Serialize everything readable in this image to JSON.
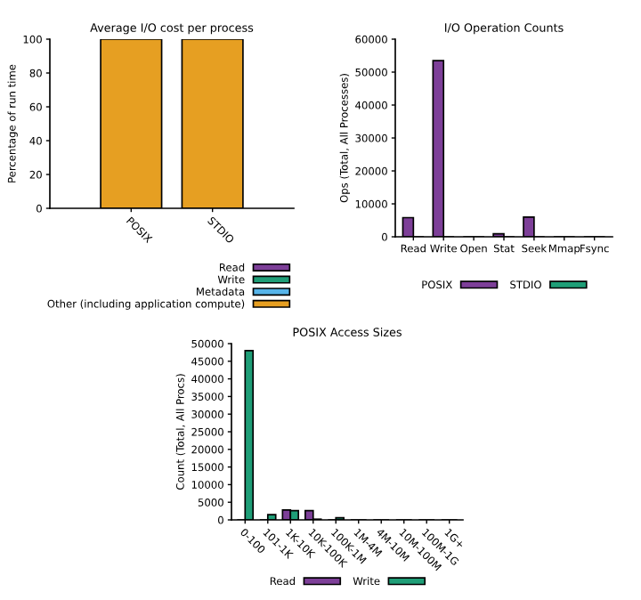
{
  "chart_data": [
    {
      "type": "bar",
      "title": "Average I/O cost per process",
      "ylabel": "Percentage of run time",
      "categories": [
        "POSIX",
        "STDIO"
      ],
      "stacked": true,
      "ylim": [
        0,
        100
      ],
      "yticks": [
        0,
        20,
        40,
        60,
        80,
        100
      ],
      "legend": "bottom right",
      "grid": false,
      "series": [
        {
          "name": "Read",
          "color": "#7d3f98",
          "values": [
            0,
            0
          ]
        },
        {
          "name": "Write",
          "color": "#1f9e77",
          "values": [
            0,
            0
          ]
        },
        {
          "name": "Metadata",
          "color": "#56b4e9",
          "values": [
            0,
            0
          ]
        },
        {
          "name": "Other (including application compute)",
          "color": "#e69f22",
          "values": [
            100,
            100
          ]
        }
      ]
    },
    {
      "type": "bar",
      "title": "I/O Operation Counts",
      "ylabel": "Ops (Total, All Processes)",
      "categories": [
        "Read",
        "Write",
        "Open",
        "Stat",
        "Seek",
        "Mmap",
        "Fsync"
      ],
      "ylim": [
        0,
        60000
      ],
      "yticks": [
        0,
        10000,
        20000,
        30000,
        40000,
        50000,
        60000
      ],
      "legend": "bottom",
      "grid": false,
      "series": [
        {
          "name": "POSIX",
          "color": "#7d3f98",
          "values": [
            5800,
            53500,
            0,
            900,
            6000,
            0,
            0
          ]
        },
        {
          "name": "STDIO",
          "color": "#1f9e77",
          "values": [
            0,
            0,
            0,
            0,
            0,
            0,
            0
          ]
        }
      ]
    },
    {
      "type": "bar",
      "title": "POSIX Access Sizes",
      "ylabel": "Count (Total, All Procs)",
      "categories": [
        "0-100",
        "101-1K",
        "1K-10K",
        "10K-100K",
        "100K-1M",
        "1M-4M",
        "4M-10M",
        "10M-100M",
        "100M-1G",
        "1G+"
      ],
      "ylim": [
        0,
        50000
      ],
      "yticks": [
        0,
        5000,
        10000,
        15000,
        20000,
        25000,
        30000,
        35000,
        40000,
        45000,
        50000
      ],
      "legend": "bottom",
      "grid": false,
      "series": [
        {
          "name": "Read",
          "color": "#7d3f98",
          "values": [
            0,
            0,
            2800,
            2600,
            0,
            0,
            0,
            0,
            0,
            0
          ]
        },
        {
          "name": "Write",
          "color": "#1f9e77",
          "values": [
            48000,
            1500,
            2600,
            200,
            600,
            0,
            0,
            0,
            0,
            0
          ]
        }
      ]
    }
  ]
}
